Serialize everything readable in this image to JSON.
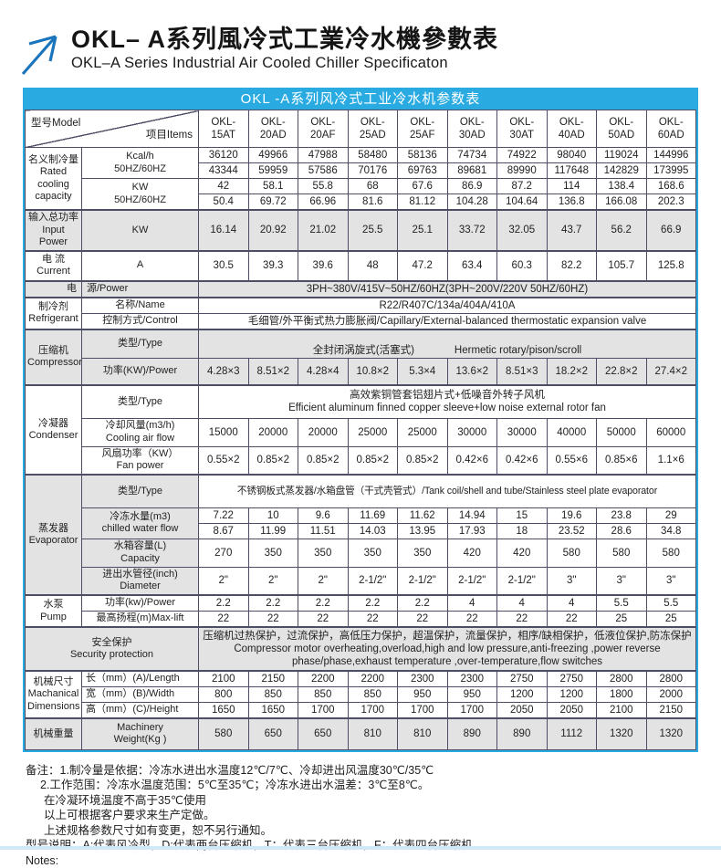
{
  "header": {
    "title_zh": "OKL– A系列風冷式工業冷水機參數表",
    "title_en": "OKL–A Series Industrial Air Cooled Chiller Specificaton",
    "arrow_color": "#1b75bc"
  },
  "colors": {
    "accent_blue": "#29abe2",
    "grid": "#4d4d66",
    "band_gray": "#e3e3e3"
  },
  "table": {
    "caption": "OKL -A系列风冷式工业冷水机参数表",
    "corner": {
      "model_label": "型号Model",
      "items_label": "项目Items"
    },
    "labels": {
      "rated": "名义制冷量\nRated\ncooling\ncapacity",
      "kcal": "Kcal/h\n50HZ/60HZ",
      "kw": "KW\n50HZ/60HZ",
      "input_power": "输入总功率\nInput Power",
      "input_unit": "KW",
      "current": "电 流\nCurrent",
      "current_unit": "A",
      "power_zh": "电",
      "power_rest": "源/Power",
      "refrigerant": "制冷剂\nRefrigerant",
      "ref_name": "名称/Name",
      "ref_control": "控制方式/Control",
      "compressor": "压缩机\nCompressor",
      "comp_type": "类型/Type",
      "comp_power": "功率(KW)/Power",
      "condenser": "冷凝器\nCondenser",
      "cond_type": "类型/Type",
      "air_flow": "冷却风量(m3/h)\nCooling air flow",
      "fan_power": "风扇功率（KW）\nFan power",
      "evaporator": "蒸发器\nEvaporator",
      "evap_type": "类型/Type",
      "chw": "冷冻水量(m3)\nchilled water flow",
      "capacity": "水箱容量(L)\nCapacity",
      "diameter": "进出水管径(inch)\nDiameter",
      "pump": "水泵\nPump",
      "pump_power": "功率(kw)/Power",
      "max_lift": "最高扬程(m)Max-lift",
      "safety": "安全保护\nSecurity protection",
      "dims": "机械尺寸\nMachanical\nDimensions",
      "length": "长（mm）(A)/Length",
      "width": "宽（mm）(B)/Width",
      "height": "高（mm）(C)/Height",
      "weight_zh": "机械重量",
      "weight_en": "Machinery\nWeight(Kg )"
    },
    "spans": {
      "power_source": "3PH~380V/415V~50HZ/60HZ(3PH~200V/220V  50HZ/60HZ)",
      "ref_name_value": "R22/R407C/134a/404A/410A",
      "ref_control_value": "毛细管/外平衡式热力膨胀阀/Capillary/External-balanced thermostatic expansion valve",
      "comp_type_zh": "全封闭涡旋式(活塞式)",
      "comp_type_en": "Hermetic rotary/pison/scroll",
      "cond_type_value": "高效紫铜管套铝翅片式+低噪音外转子风机\nEfficient aluminum finned copper sleeve+low noise external rotor fan",
      "evap_type_value": "不锈钢板式蒸发器/水箱盘管（干式壳管式）/Tank coil/shell and tube/Stainless steel plate evaporator",
      "safety_value": "压缩机过热保护，过流保护，高低压力保护，超温保护，流量保护，相序/缺相保护，低液位保护,防冻保护\nCompressor motor overheating,overload,high and low pressure,anti-freezing ,power reverse phase/phase,exhaust temperature ,over-temperature,flow switches"
    },
    "rows": {
      "models": [
        "OKL-\n15AT",
        "OKL-\n20AD",
        "OKL-\n20AF",
        "OKL-\n25AD",
        "OKL-\n25AF",
        "OKL-\n30AD",
        "OKL-\n30AT",
        "OKL-\n40AD",
        "OKL-\n50AD",
        "OKL-\n60AD"
      ],
      "kcal50": [
        "36120",
        "49966",
        "47988",
        "58480",
        "58136",
        "74734",
        "74922",
        "98040",
        "119024",
        "144996"
      ],
      "kcal60": [
        "43344",
        "59959",
        "57586",
        "70176",
        "69763",
        "89681",
        "89990",
        "117648",
        "142829",
        "173995"
      ],
      "kw50": [
        "42",
        "58.1",
        "55.8",
        "68",
        "67.6",
        "86.9",
        "87.2",
        "114",
        "138.4",
        "168.6"
      ],
      "kw60": [
        "50.4",
        "69.72",
        "66.96",
        "81.6",
        "81.12",
        "104.28",
        "104.64",
        "136.8",
        "166.08",
        "202.3"
      ],
      "input_power": [
        "16.14",
        "20.92",
        "21.02",
        "25.5",
        "25.1",
        "33.72",
        "32.05",
        "43.7",
        "56.2",
        "66.9"
      ],
      "current": [
        "30.5",
        "39.3",
        "39.6",
        "48",
        "47.2",
        "63.4",
        "60.3",
        "82.2",
        "105.7",
        "125.8"
      ],
      "comp_power": [
        "4.28×3",
        "8.51×2",
        "4.28×4",
        "10.8×2",
        "5.3×4",
        "13.6×2",
        "8.51×3",
        "18.2×2",
        "22.8×2",
        "27.4×2"
      ],
      "air_flow": [
        "15000",
        "20000",
        "20000",
        "25000",
        "25000",
        "30000",
        "30000",
        "40000",
        "50000",
        "60000"
      ],
      "fan_power": [
        "0.55×2",
        "0.85×2",
        "0.85×2",
        "0.85×2",
        "0.85×2",
        "0.42×6",
        "0.42×6",
        "0.55×6",
        "0.85×6",
        "1.1×6"
      ],
      "chw50": [
        "7.22",
        "10",
        "9.6",
        "11.69",
        "11.62",
        "14.94",
        "15",
        "19.6",
        "23.8",
        "29"
      ],
      "chw60": [
        "8.67",
        "11.99",
        "11.51",
        "14.03",
        "13.95",
        "17.93",
        "18",
        "23.52",
        "28.6",
        "34.8"
      ],
      "capacity": [
        "270",
        "350",
        "350",
        "350",
        "350",
        "420",
        "420",
        "580",
        "580",
        "580"
      ],
      "diameter": [
        "2\"",
        "2\"",
        "2\"",
        "2-1/2\"",
        "2-1/2\"",
        "2-1/2\"",
        "2-1/2\"",
        "3\"",
        "3\"",
        "3\""
      ],
      "pump_power": [
        "2.2",
        "2.2",
        "2.2",
        "2.2",
        "2.2",
        "4",
        "4",
        "4",
        "5.5",
        "5.5"
      ],
      "max_lift": [
        "22",
        "22",
        "22",
        "22",
        "22",
        "22",
        "22",
        "22",
        "25",
        "25"
      ],
      "length": [
        "2100",
        "2150",
        "2200",
        "2200",
        "2300",
        "2300",
        "2750",
        "2750",
        "2800",
        "2800"
      ],
      "width": [
        "800",
        "850",
        "850",
        "850",
        "950",
        "950",
        "1200",
        "1200",
        "1800",
        "2000"
      ],
      "height": [
        "1650",
        "1650",
        "1700",
        "1700",
        "1700",
        "1700",
        "2050",
        "2050",
        "2100",
        "2150"
      ],
      "weight": [
        "580",
        "650",
        "650",
        "810",
        "810",
        "890",
        "890",
        "1112",
        "1320",
        "1320"
      ]
    }
  },
  "notes": {
    "lines": [
      "备注：1.制冷量是依据：冷冻水进出水温度12℃/7℃、冷却进出风温度30℃/35℃",
      "2.工作范围：冷冻水温度范围：5℃至35℃；冷冻水进出水温差：3℃至8℃。",
      "在冷凝环境温度不高于35℃使用",
      "以上可根据客户要求来生产定做。",
      "上述规格参数尺寸如有变更，恕不另行通知。",
      "型号说明：A:代表风冷型，D:代表两台压缩机，T：代表三台压缩机，F：代表四台压缩机。",
      "Notes:"
    ]
  }
}
